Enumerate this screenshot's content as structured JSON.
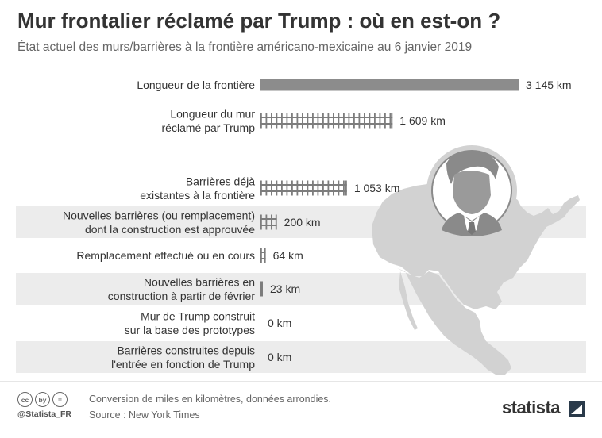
{
  "header": {
    "title": "Mur frontalier réclamé par Trump : où en est-on ?",
    "subtitle": "État actuel des murs/barrières à la frontière américano-mexicaine au 6 janvier 2019"
  },
  "chart_data": {
    "type": "bar",
    "orientation": "horizontal",
    "categories": [
      [
        "Longueur de la frontière"
      ],
      [
        "Longueur du mur",
        "réclamé par Trump"
      ],
      [
        "Barrières déjà",
        "existantes à la frontière"
      ],
      [
        "Nouvelles barrières (ou remplacement)",
        "dont la construction est approuvée"
      ],
      [
        "Remplacement effectué ou en cours"
      ],
      [
        "Nouvelles barrières en",
        "construction à partir de février"
      ],
      [
        "Mur de Trump construit",
        "sur la base des prototypes"
      ],
      [
        "Barrières construites depuis",
        "l'entrée en fonction de Trump"
      ]
    ],
    "values": [
      3145,
      1609,
      1053,
      200,
      64,
      23,
      0,
      0
    ],
    "value_labels": [
      "3 145 km",
      "1 609 km",
      "1 053 km",
      "200 km",
      "64 km",
      "23 km",
      "0 km",
      "0 km"
    ],
    "bar_styles": [
      "solid",
      "fence",
      "fence",
      "fence",
      "fence",
      "fence",
      "fence",
      "fence"
    ],
    "shaded_rows": [
      3,
      5,
      7
    ],
    "unit": "km",
    "colors": {
      "bar": "#8c8c8c",
      "fence": "#7d7d7d",
      "map": "#d2d2d2",
      "row_shade": "#ececec"
    },
    "decorations": [
      "us-mexico-map",
      "trump-portrait-icon"
    ]
  },
  "footer": {
    "license_icons": [
      "cc",
      "by",
      "="
    ],
    "handle": "@Statista_FR",
    "note": "Conversion de miles en kilomètres, données arrondies.",
    "source": "Source : New York Times",
    "brand": "statista"
  }
}
